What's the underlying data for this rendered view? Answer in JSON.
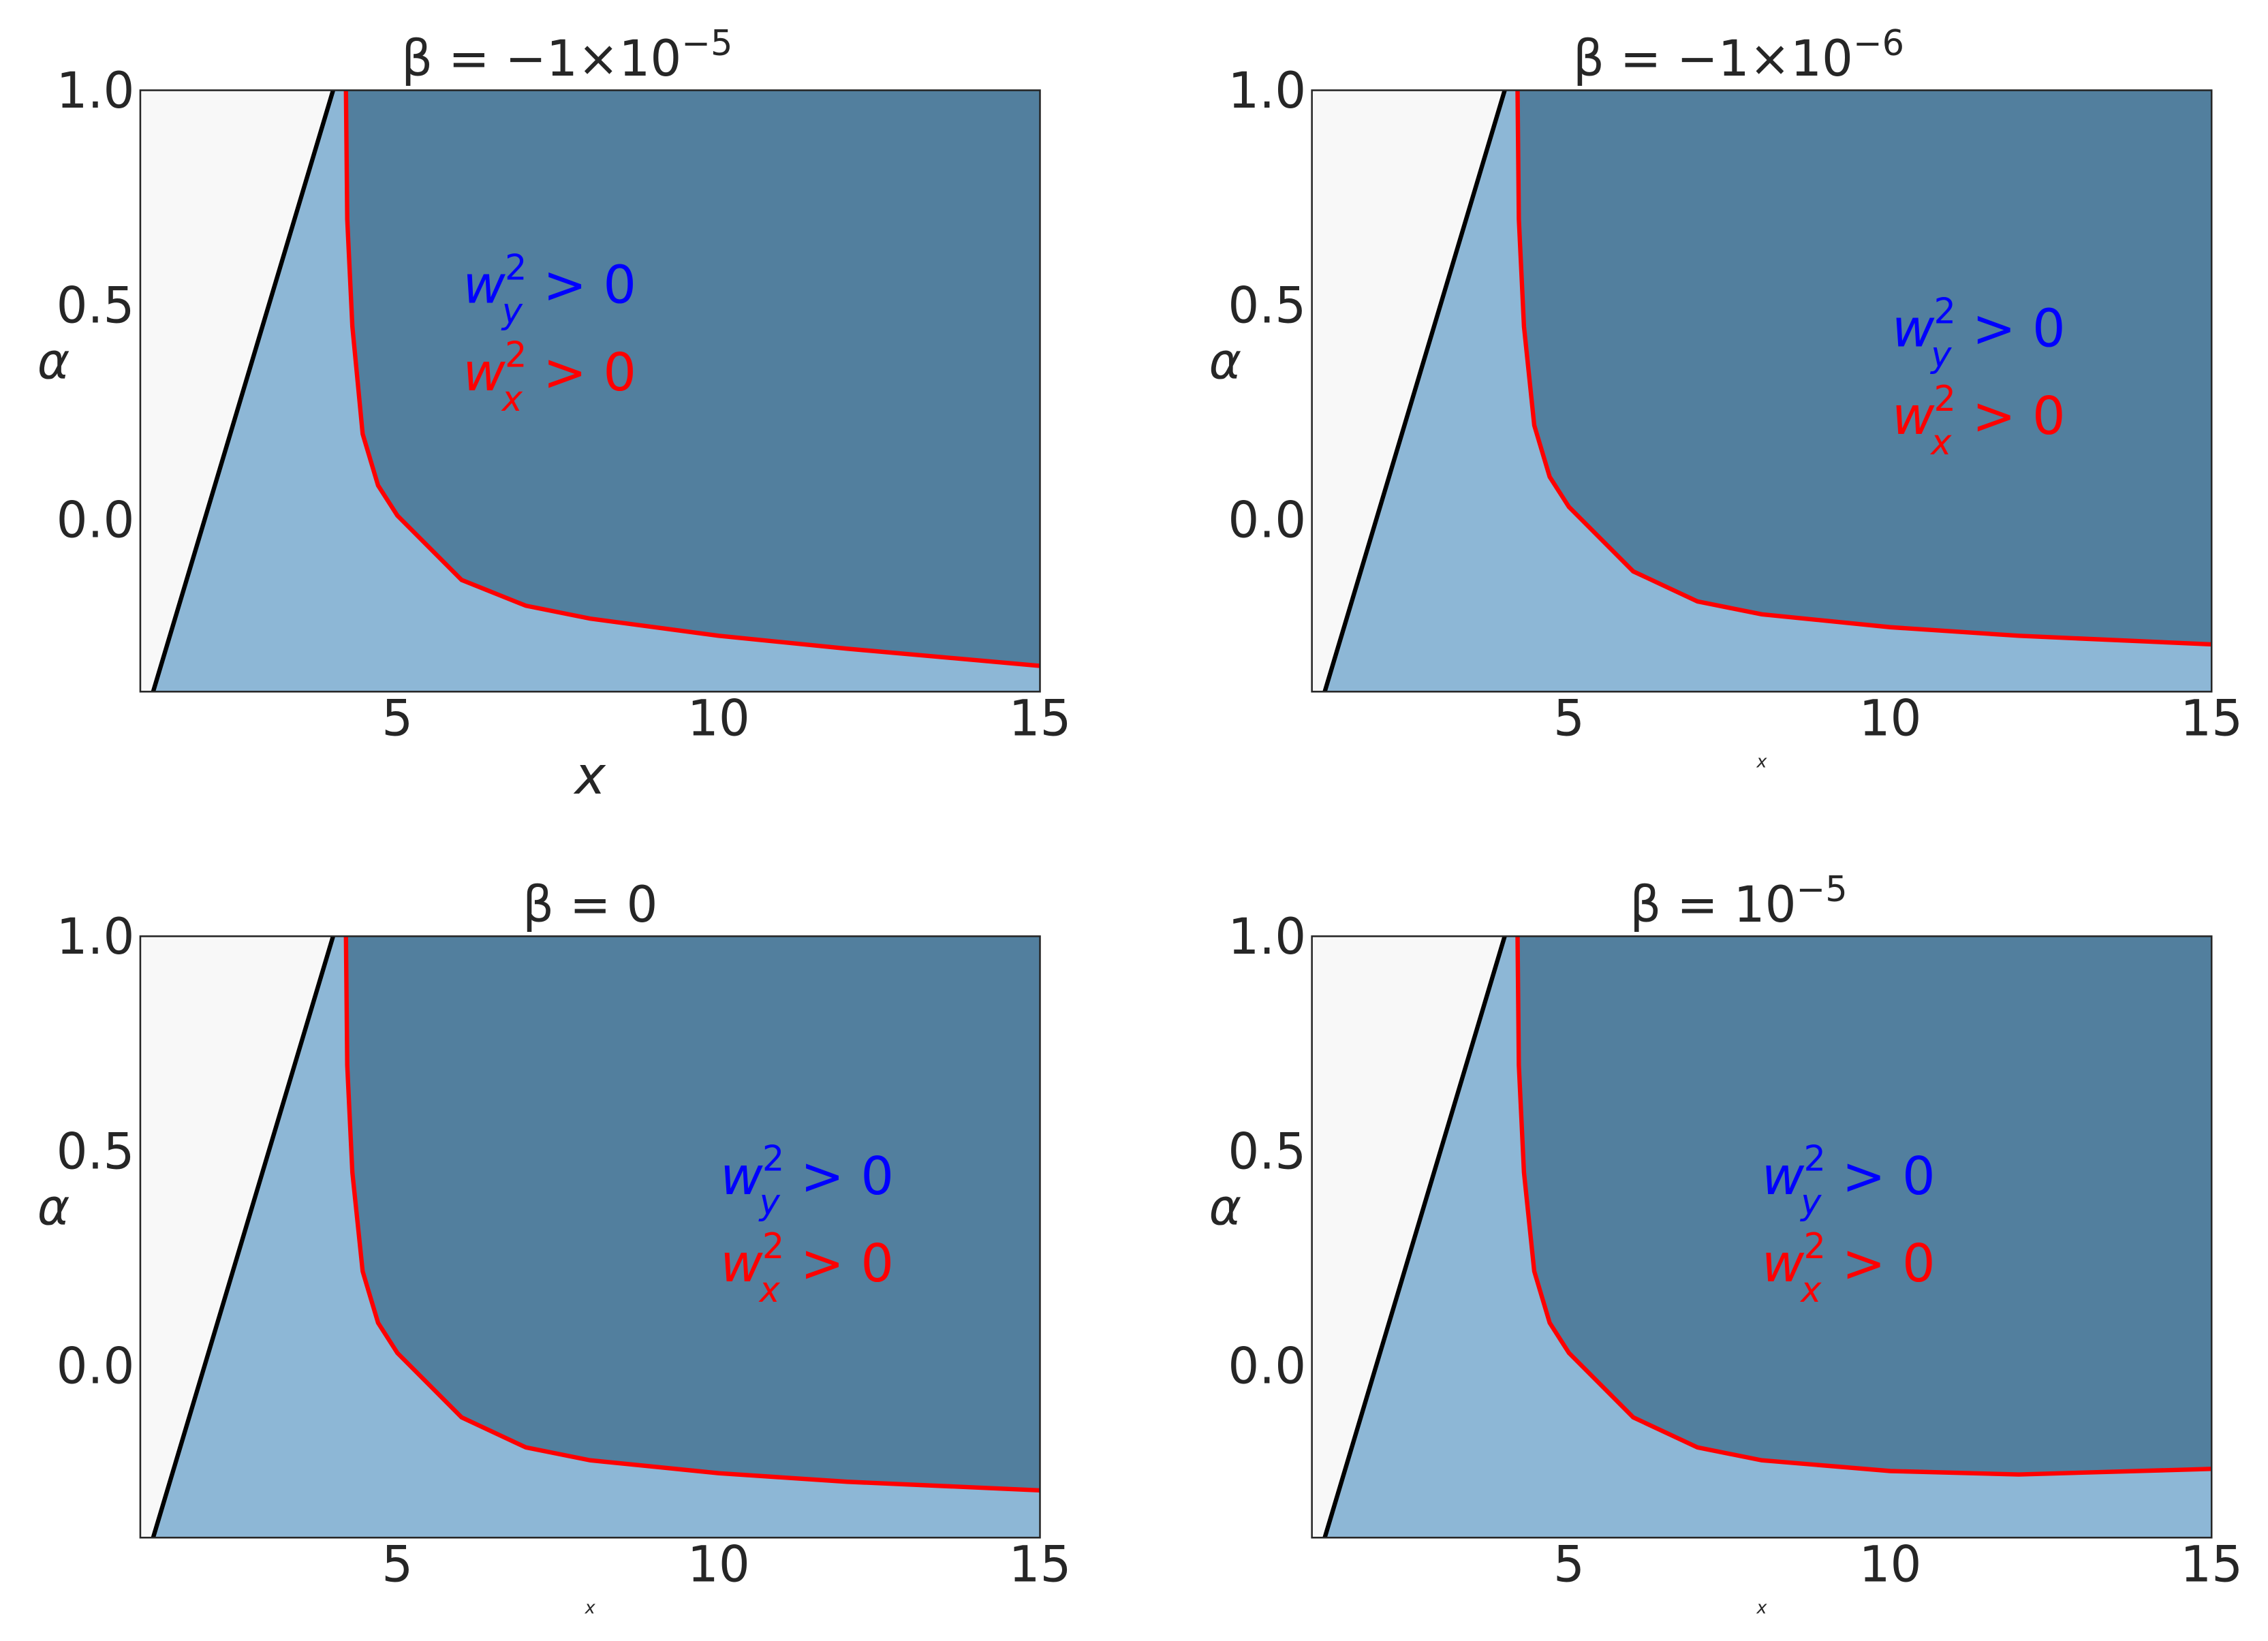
{
  "chart_data": [
    {
      "type": "region",
      "title": {
        "text": "β = −1×10",
        "sup": "−5"
      },
      "xlabel": "x",
      "ylabel": "α",
      "xlim": [
        1,
        15
      ],
      "ylim": [
        -0.4,
        1.0
      ],
      "xticks": [
        5,
        10,
        15
      ],
      "yticks": [
        {
          "value": 0,
          "label": "0.0"
        },
        {
          "value": 0.5,
          "label": "0.5"
        },
        {
          "value": 1,
          "label": "1.0"
        }
      ],
      "region_colors": [
        "#f8f8f8",
        "#8db7d6",
        "#527f9e"
      ],
      "series": [
        {
          "color": "#000000",
          "x": [
            1.2,
            4.0
          ],
          "values": [
            -0.4,
            1.0
          ]
        },
        {
          "color": "#ff0000",
          "x": [
            4.2,
            4.22,
            4.3,
            4.46,
            4.7,
            5,
            6,
            7,
            8,
            10,
            12,
            15
          ],
          "values": [
            1.0,
            0.7,
            0.45,
            0.2,
            0.08,
            0.01,
            -0.14,
            -0.2,
            -0.23,
            -0.27,
            -0.3,
            -0.34
          ]
        }
      ],
      "annotations": [
        {
          "base": "w",
          "sub": "y",
          "sup": "2",
          "rest": " > 0",
          "color": "#0000ff"
        },
        {
          "base": "w",
          "sub": "x",
          "sup": "2",
          "rest": " > 0",
          "color": "#ff0000"
        }
      ]
    },
    {
      "type": "region",
      "title": {
        "text": "β = −1×10",
        "sup": "−6"
      },
      "xlabel": "x",
      "ylabel": "α",
      "xlim": [
        1,
        15
      ],
      "ylim": [
        -0.4,
        1.0
      ],
      "xticks": [
        5,
        10,
        15
      ],
      "yticks": [
        {
          "value": 0,
          "label": "0.0"
        },
        {
          "value": 0.5,
          "label": "0.5"
        },
        {
          "value": 1,
          "label": "1.0"
        }
      ],
      "region_colors": [
        "#f8f8f8",
        "#8db7d6",
        "#527f9e"
      ],
      "series": [
        {
          "color": "#000000",
          "x": [
            1.2,
            4.0
          ],
          "values": [
            -0.4,
            1.0
          ]
        },
        {
          "color": "#ff0000",
          "x": [
            4.2,
            4.22,
            4.3,
            4.46,
            4.7,
            5,
            6,
            7,
            8,
            10,
            12,
            15
          ],
          "values": [
            1.0,
            0.7,
            0.45,
            0.22,
            0.1,
            0.03,
            -0.12,
            -0.19,
            -0.22,
            -0.25,
            -0.27,
            -0.29
          ]
        }
      ],
      "annotations": [
        {
          "base": "w",
          "sub": "y",
          "sup": "2",
          "rest": " > 0",
          "color": "#0000ff"
        },
        {
          "base": "w",
          "sub": "x",
          "sup": "2",
          "rest": " > 0",
          "color": "#ff0000"
        }
      ]
    },
    {
      "type": "region",
      "title": {
        "text": "β = 0"
      },
      "xlabel": "x",
      "ylabel": "α",
      "xlim": [
        1,
        15
      ],
      "ylim": [
        -0.4,
        1.0
      ],
      "xticks": [
        5,
        10,
        15
      ],
      "yticks": [
        {
          "value": 0,
          "label": "0.0"
        },
        {
          "value": 0.5,
          "label": "0.5"
        },
        {
          "value": 1,
          "label": "1.0"
        }
      ],
      "region_colors": [
        "#f8f8f8",
        "#8db7d6",
        "#527f9e"
      ],
      "series": [
        {
          "color": "#000000",
          "x": [
            1.2,
            4.0
          ],
          "values": [
            -0.4,
            1.0
          ]
        },
        {
          "color": "#ff0000",
          "x": [
            4.2,
            4.22,
            4.3,
            4.46,
            4.7,
            5,
            6,
            7,
            8,
            10,
            12,
            15
          ],
          "values": [
            1.0,
            0.7,
            0.45,
            0.22,
            0.1,
            0.03,
            -0.12,
            -0.19,
            -0.22,
            -0.25,
            -0.27,
            -0.29
          ]
        }
      ],
      "annotations": [
        {
          "base": "w",
          "sub": "y",
          "sup": "2",
          "rest": " > 0",
          "color": "#0000ff"
        },
        {
          "base": "w",
          "sub": "x",
          "sup": "2",
          "rest": " > 0",
          "color": "#ff0000"
        }
      ]
    },
    {
      "type": "region",
      "title": {
        "text": "β = 10",
        "sup": "−5"
      },
      "xlabel": "x",
      "ylabel": "α",
      "xlim": [
        1,
        15
      ],
      "ylim": [
        -0.4,
        1.0
      ],
      "xticks": [
        5,
        10,
        15
      ],
      "yticks": [
        {
          "value": 0,
          "label": "0.0"
        },
        {
          "value": 0.5,
          "label": "0.5"
        },
        {
          "value": 1,
          "label": "1.0"
        }
      ],
      "region_colors": [
        "#f8f8f8",
        "#8db7d6",
        "#527f9e"
      ],
      "series": [
        {
          "color": "#000000",
          "x": [
            1.2,
            4.0
          ],
          "values": [
            -0.4,
            1.0
          ]
        },
        {
          "color": "#ff0000",
          "x": [
            4.2,
            4.22,
            4.3,
            4.46,
            4.7,
            5,
            6,
            7,
            8,
            10,
            12,
            15
          ],
          "values": [
            1.0,
            0.7,
            0.45,
            0.22,
            0.1,
            0.03,
            -0.12,
            -0.19,
            -0.22,
            -0.245,
            -0.253,
            -0.24
          ]
        }
      ],
      "annotations": [
        {
          "base": "w",
          "sub": "y",
          "sup": "2",
          "rest": " > 0",
          "color": "#0000ff"
        },
        {
          "base": "w",
          "sub": "x",
          "sup": "2",
          "rest": " > 0",
          "color": "#ff0000"
        }
      ]
    }
  ]
}
